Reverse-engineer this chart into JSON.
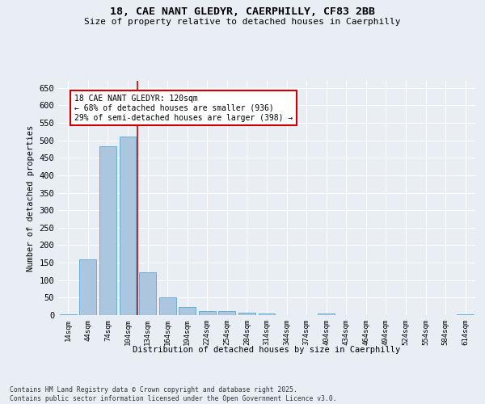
{
  "title_line1": "18, CAE NANT GLEDYR, CAERPHILLY, CF83 2BB",
  "title_line2": "Size of property relative to detached houses in Caerphilly",
  "xlabel": "Distribution of detached houses by size in Caerphilly",
  "ylabel": "Number of detached properties",
  "categories": [
    "14sqm",
    "44sqm",
    "74sqm",
    "104sqm",
    "134sqm",
    "164sqm",
    "194sqm",
    "224sqm",
    "254sqm",
    "284sqm",
    "314sqm",
    "344sqm",
    "374sqm",
    "404sqm",
    "434sqm",
    "464sqm",
    "494sqm",
    "524sqm",
    "554sqm",
    "584sqm",
    "614sqm"
  ],
  "values": [
    3,
    160,
    483,
    510,
    122,
    51,
    22,
    12,
    12,
    8,
    5,
    0,
    0,
    5,
    0,
    0,
    0,
    0,
    0,
    0,
    3
  ],
  "bar_color": "#adc6e0",
  "bar_edge_color": "#6aaed6",
  "ylim": [
    0,
    670
  ],
  "yticks": [
    0,
    50,
    100,
    150,
    200,
    250,
    300,
    350,
    400,
    450,
    500,
    550,
    600,
    650
  ],
  "vline_x": 3.5,
  "vline_color": "#cc0000",
  "annotation_text": "18 CAE NANT GLEDYR: 120sqm\n← 68% of detached houses are smaller (936)\n29% of semi-detached houses are larger (398) →",
  "annotation_box_color": "#ffffff",
  "annotation_box_edge": "#cc0000",
  "background_color": "#e8eef4",
  "grid_color": "#ffffff",
  "footer_line1": "Contains HM Land Registry data © Crown copyright and database right 2025.",
  "footer_line2": "Contains public sector information licensed under the Open Government Licence v3.0."
}
